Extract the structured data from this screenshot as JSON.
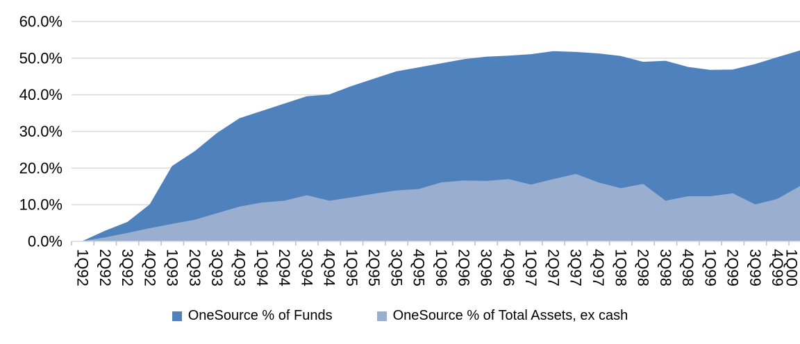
{
  "chart_data": {
    "type": "area",
    "title": "",
    "categories": [
      "1Q92",
      "2Q92",
      "3Q92",
      "4Q92",
      "1Q93",
      "2Q93",
      "3Q93",
      "4Q93",
      "1Q94",
      "2Q94",
      "3Q94",
      "4Q94",
      "1Q95",
      "2Q95",
      "3Q95",
      "4Q95",
      "1Q96",
      "2Q96",
      "3Q96",
      "4Q96",
      "1Q97",
      "2Q97",
      "3Q97",
      "4Q97",
      "1Q98",
      "2Q98",
      "3Q98",
      "4Q98",
      "1Q99",
      "2Q99",
      "3Q99",
      "4Q99",
      "1Q00"
    ],
    "series": [
      {
        "name": "OneSource % of Funds",
        "color": "#4F81BD",
        "values": [
          0.0,
          2.8,
          5.2,
          10.0,
          20.5,
          24.5,
          29.5,
          33.5,
          35.5,
          37.5,
          39.5,
          40.0,
          42.3,
          44.3,
          46.3,
          47.4,
          48.5,
          49.6,
          50.3,
          50.6,
          51.0,
          51.8,
          51.6,
          51.2,
          50.5,
          48.9,
          49.2,
          47.5,
          46.7,
          46.8,
          48.3,
          50.2,
          52.0
        ]
      },
      {
        "name": "OneSource % of Total Assets, ex cash",
        "color": "#9AAFD0",
        "values": [
          0.0,
          1.0,
          2.2,
          3.5,
          4.7,
          5.8,
          7.6,
          9.4,
          10.5,
          11.0,
          12.5,
          11.0,
          11.9,
          12.9,
          13.8,
          14.2,
          16.0,
          16.5,
          16.4,
          16.9,
          15.4,
          16.9,
          18.3,
          16.0,
          14.4,
          15.6,
          11.0,
          12.2,
          12.2,
          13.0,
          10.0,
          11.5,
          15.0
        ]
      }
    ],
    "y_axis": {
      "min": 0,
      "max": 60,
      "step": 10,
      "tick_labels": [
        "0.0%",
        "10.0%",
        "20.0%",
        "30.0%",
        "40.0%",
        "50.0%",
        "60.0%"
      ]
    },
    "x_axis": {
      "label_rotation": 90
    },
    "legend_position": "bottom",
    "grid": {
      "horizontal": true,
      "color": "#D9D9D9",
      "axis_color": "#BFBFBF"
    },
    "text_color": "#000000"
  }
}
